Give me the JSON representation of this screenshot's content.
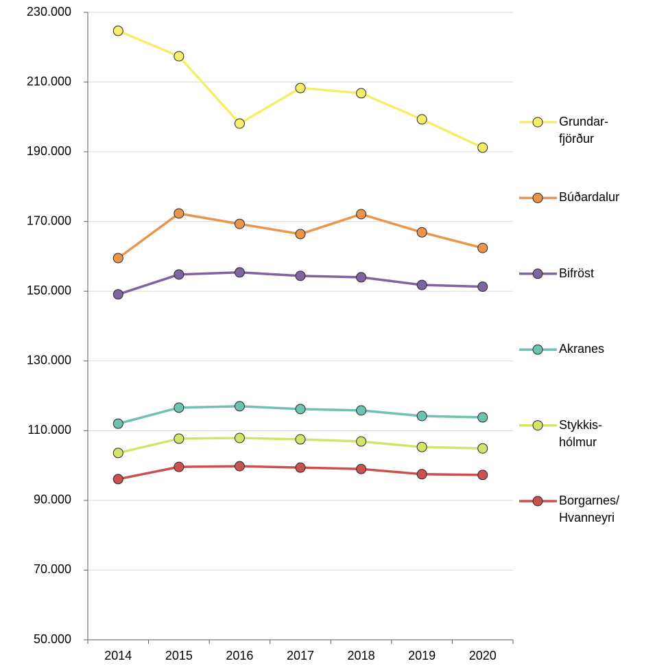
{
  "chart_data": {
    "type": "line",
    "categories": [
      "2014",
      "2015",
      "2016",
      "2017",
      "2018",
      "2019",
      "2020"
    ],
    "series": [
      {
        "name": "Grundar-\nfjörður",
        "color": "#f3ef6b",
        "values": [
          224700,
          217400,
          198100,
          208300,
          206800,
          199300,
          191200
        ]
      },
      {
        "name": "Búðardalur",
        "color": "#e9954c",
        "values": [
          159500,
          172300,
          169300,
          166400,
          172100,
          166900,
          162400
        ]
      },
      {
        "name": "Bifröst",
        "color": "#8064a2",
        "values": [
          149100,
          154800,
          155400,
          154400,
          154000,
          151800,
          151300
        ]
      },
      {
        "name": "Akranes",
        "color": "#6fc1b1",
        "values": [
          112000,
          116600,
          117000,
          116200,
          115800,
          114200,
          113800
        ]
      },
      {
        "name": "Stykkis-\nhólmur",
        "color": "#d5e26b",
        "values": [
          103600,
          107700,
          107900,
          107500,
          106900,
          105300,
          104900
        ]
      },
      {
        "name": "Borgarnes/\nHvanneyri",
        "color": "#c9514f",
        "values": [
          96100,
          99600,
          99800,
          99400,
          99000,
          97500,
          97300
        ]
      }
    ],
    "ylim": [
      50000,
      230000
    ],
    "yticks": [
      {
        "value": 50000,
        "label": "50.000"
      },
      {
        "value": 70000,
        "label": "70.000"
      },
      {
        "value": 90000,
        "label": "90.000"
      },
      {
        "value": 110000,
        "label": "110.000"
      },
      {
        "value": 130000,
        "label": "130.000"
      },
      {
        "value": 150000,
        "label": "150.000"
      },
      {
        "value": 170000,
        "label": "170.000"
      },
      {
        "value": 190000,
        "label": "190.000"
      },
      {
        "value": 210000,
        "label": "210.000"
      },
      {
        "value": 230000,
        "label": "230.000"
      }
    ],
    "grid": true,
    "legend": "right"
  }
}
